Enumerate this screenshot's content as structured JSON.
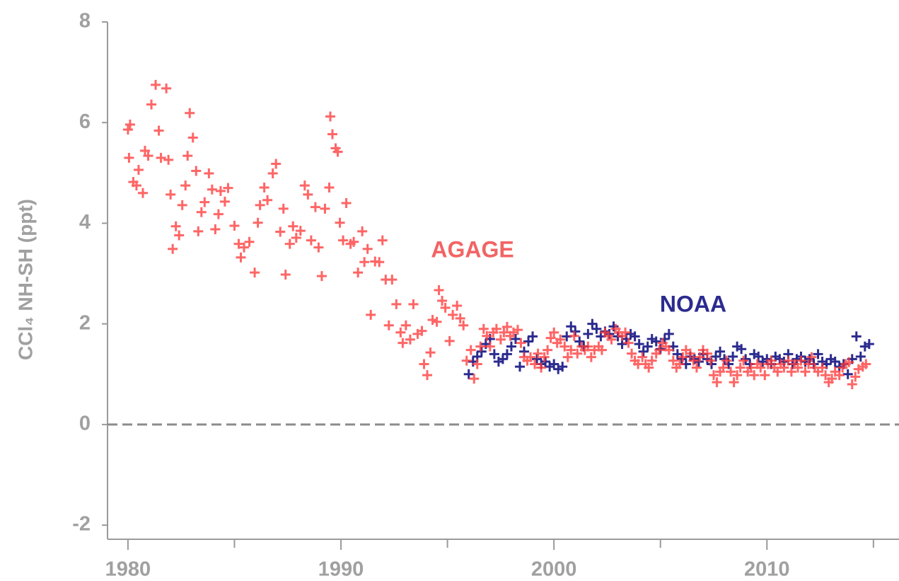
{
  "chart_data": {
    "type": "scatter",
    "ylabel": "CCl₄ NH-SH (ppt)",
    "xlim": [
      1979.04,
      2016.2
    ],
    "ylim": [
      -2.28,
      8
    ],
    "xticks": [
      1980,
      1990,
      2000,
      2010
    ],
    "xminor_ticks": [
      1985,
      1995,
      2005,
      2015
    ],
    "yticks": [
      -2,
      0,
      2,
      4,
      6,
      8
    ],
    "zero_line": true,
    "grid": false,
    "marker": "plus",
    "series": [
      {
        "name": "AGAGE",
        "color": "#ff3b3b",
        "label_color": "#f26464",
        "x": [
          1980.0,
          1980.1,
          1980.05,
          1980.25,
          1980.4,
          1980.5,
          1980.7,
          1980.8,
          1980.95,
          1981.1,
          1981.3,
          1981.45,
          1981.55,
          1981.8,
          1981.9,
          1982.0,
          1982.1,
          1982.25,
          1982.4,
          1982.55,
          1982.7,
          1982.8,
          1982.9,
          1983.05,
          1983.2,
          1983.3,
          1983.45,
          1983.6,
          1983.8,
          1983.95,
          1984.1,
          1984.25,
          1984.35,
          1984.55,
          1984.7,
          1985.0,
          1985.2,
          1985.3,
          1985.45,
          1985.7,
          1985.95,
          1986.1,
          1986.2,
          1986.4,
          1986.55,
          1986.8,
          1986.95,
          1987.15,
          1987.3,
          1987.4,
          1987.6,
          1987.75,
          1987.9,
          1988.1,
          1988.3,
          1988.45,
          1988.6,
          1988.8,
          1988.95,
          1989.1,
          1989.25,
          1989.45,
          1989.5,
          1989.6,
          1989.75,
          1989.85,
          1989.95,
          1990.1,
          1990.25,
          1990.45,
          1990.6,
          1990.8,
          1991.0,
          1991.1,
          1991.25,
          1991.4,
          1991.6,
          1991.8,
          1991.95,
          1992.1,
          1992.25,
          1992.4,
          1992.6,
          1992.8,
          1992.9,
          1993.05,
          1993.25,
          1993.4,
          1993.6,
          1993.8,
          1993.9,
          1994.05,
          1994.2,
          1994.3,
          1994.5,
          1994.6,
          1994.75,
          1994.9,
          1995.1,
          1995.25,
          1995.45,
          1995.6,
          1995.75,
          1995.9,
          1996.1,
          1996.25,
          1996.4,
          1996.55,
          1996.7,
          1996.85,
          1997.0,
          1997.15,
          1997.3,
          1997.5,
          1997.65,
          1997.8,
          1997.95,
          1998.1,
          1998.3,
          1998.45,
          1998.6,
          1998.75,
          1998.9,
          1999.1,
          1999.25,
          1999.4,
          1999.55,
          1999.7,
          1999.85,
          2000.0,
          2000.15,
          2000.3,
          2000.5,
          2000.65,
          2000.8,
          2000.95,
          2001.1,
          2001.3,
          2001.45,
          2001.6,
          2001.75,
          2001.9,
          2002.1,
          2002.25,
          2002.4,
          2002.55,
          2002.7,
          2002.9,
          2003.05,
          2003.2,
          2003.35,
          2003.5,
          2003.65,
          2003.8,
          2003.95,
          2004.15,
          2004.3,
          2004.45,
          2004.6,
          2004.8,
          2004.95,
          2005.1,
          2005.25,
          2005.4,
          2005.6,
          2005.75,
          2005.9,
          2006.05,
          2006.2,
          2006.4,
          2006.55,
          2006.7,
          2006.85,
          2007.0,
          2007.2,
          2007.35,
          2007.5,
          2007.65,
          2007.8,
          2007.95,
          2008.1,
          2008.3,
          2008.45,
          2008.6,
          2008.75,
          2008.9,
          2009.1,
          2009.25,
          2009.4,
          2009.55,
          2009.7,
          2009.9,
          2010.05,
          2010.2,
          2010.35,
          2010.5,
          2010.65,
          2010.8,
          2011.0,
          2011.15,
          2011.3,
          2011.45,
          2011.6,
          2011.8,
          2011.95,
          2012.1,
          2012.25,
          2012.4,
          2012.6,
          2012.75,
          2012.9,
          2013.05,
          2013.2,
          2013.4,
          2013.55,
          2013.7,
          2013.85,
          2014.0,
          2014.15,
          2014.3,
          2014.5,
          2014.65
        ],
        "values": [
          5.86,
          5.96,
          5.3,
          4.82,
          4.75,
          5.06,
          4.6,
          5.44,
          5.34,
          6.36,
          6.75,
          5.84,
          5.3,
          6.68,
          5.26,
          4.57,
          3.49,
          3.94,
          3.76,
          4.36,
          4.75,
          5.34,
          6.19,
          5.7,
          5.04,
          3.84,
          4.22,
          4.42,
          4.99,
          4.67,
          3.88,
          4.18,
          4.64,
          4.43,
          4.7,
          3.95,
          3.59,
          3.32,
          3.52,
          3.63,
          3.02,
          4.01,
          4.36,
          4.71,
          4.46,
          4.99,
          5.18,
          3.83,
          4.29,
          2.98,
          3.59,
          3.94,
          3.71,
          3.85,
          4.75,
          4.57,
          3.66,
          4.32,
          3.52,
          2.95,
          4.29,
          4.71,
          6.12,
          5.77,
          5.49,
          5.42,
          4.01,
          3.66,
          4.4,
          3.59,
          3.63,
          3.02,
          3.84,
          3.23,
          3.49,
          2.18,
          3.24,
          3.23,
          3.66,
          2.88,
          1.97,
          2.88,
          2.39,
          1.83,
          1.62,
          1.97,
          1.69,
          2.39,
          1.8,
          1.86,
          1.2,
          0.98,
          1.43,
          2.08,
          2.04,
          2.67,
          2.46,
          2.32,
          1.66,
          2.18,
          2.36,
          2.11,
          1.97,
          1.27,
          1.48,
          0.91,
          1.2,
          1.55,
          1.9,
          1.76,
          1.55,
          1.83,
          1.9,
          1.69,
          1.83,
          1.94,
          1.76,
          1.83,
          1.88,
          1.62,
          1.34,
          1.27,
          1.34,
          1.2,
          1.41,
          1.13,
          1.34,
          1.48,
          1.72,
          1.83,
          1.62,
          1.69,
          1.55,
          1.34,
          1.48,
          1.76,
          1.41,
          1.55,
          1.48,
          1.55,
          1.34,
          1.48,
          1.55,
          1.48,
          1.83,
          1.76,
          1.69,
          1.9,
          1.83,
          1.76,
          1.83,
          1.62,
          1.41,
          1.27,
          1.2,
          1.34,
          1.2,
          1.13,
          1.27,
          1.41,
          1.48,
          1.62,
          1.55,
          1.48,
          1.27,
          1.13,
          1.2,
          1.34,
          1.48,
          1.41,
          1.27,
          1.13,
          1.34,
          1.48,
          1.41,
          1.27,
          0.98,
          0.84,
          1.05,
          1.13,
          1.27,
          1.05,
          0.84,
          0.98,
          1.13,
          1.27,
          1.05,
          1.13,
          0.98,
          1.2,
          1.13,
          0.98,
          1.2,
          1.27,
          1.13,
          1.05,
          1.2,
          1.13,
          1.27,
          1.05,
          1.2,
          1.13,
          1.27,
          1.05,
          1.2,
          1.34,
          1.13,
          1.05,
          1.13,
          0.98,
          0.84,
          0.91,
          1.05,
          0.98,
          1.13,
          1.2,
          1.24,
          0.8,
          0.95,
          1.1,
          1.15,
          1.2
        ]
      },
      {
        "name": "NOAA",
        "color": "#2b2b8f",
        "label_color": "#2b2b8f",
        "x": [
          1996.0,
          1996.2,
          1996.4,
          1996.6,
          1996.8,
          1997.0,
          1997.2,
          1997.4,
          1997.6,
          1997.8,
          1998.0,
          1998.2,
          1998.4,
          1998.6,
          1998.8,
          1999.0,
          1999.2,
          1999.4,
          1999.6,
          1999.8,
          2000.0,
          2000.2,
          2000.4,
          2000.6,
          2000.8,
          2001.0,
          2001.2,
          2001.4,
          2001.6,
          2001.8,
          2002.0,
          2002.2,
          2002.4,
          2002.6,
          2002.8,
          2003.0,
          2003.2,
          2003.4,
          2003.6,
          2003.8,
          2004.0,
          2004.2,
          2004.4,
          2004.6,
          2004.8,
          2005.0,
          2005.2,
          2005.4,
          2005.6,
          2005.8,
          2006.0,
          2006.2,
          2006.4,
          2006.6,
          2006.8,
          2007.0,
          2007.2,
          2007.4,
          2007.6,
          2007.8,
          2008.0,
          2008.2,
          2008.4,
          2008.6,
          2008.8,
          2009.0,
          2009.2,
          2009.4,
          2009.6,
          2009.8,
          2010.0,
          2010.2,
          2010.4,
          2010.6,
          2010.8,
          2011.0,
          2011.2,
          2011.4,
          2011.6,
          2011.8,
          2012.0,
          2012.2,
          2012.4,
          2012.6,
          2012.8,
          2013.0,
          2013.2,
          2013.4,
          2013.6,
          2013.8,
          2014.0,
          2014.2,
          2014.4,
          2014.6,
          2014.8
        ],
        "values": [
          1.0,
          1.25,
          1.35,
          1.45,
          1.6,
          1.7,
          1.4,
          1.25,
          1.3,
          1.4,
          1.55,
          1.7,
          1.15,
          1.45,
          1.65,
          1.75,
          1.3,
          1.2,
          1.25,
          1.15,
          1.2,
          1.1,
          1.15,
          1.75,
          1.95,
          1.85,
          1.65,
          1.55,
          1.8,
          2.0,
          1.9,
          1.75,
          1.85,
          1.8,
          1.95,
          1.75,
          1.6,
          1.7,
          1.8,
          1.75,
          1.6,
          1.45,
          1.55,
          1.7,
          1.65,
          1.5,
          1.7,
          1.8,
          1.55,
          1.4,
          1.3,
          1.2,
          1.35,
          1.3,
          1.25,
          1.4,
          1.3,
          1.2,
          1.35,
          1.45,
          1.3,
          1.2,
          1.35,
          1.55,
          1.5,
          1.3,
          1.2,
          1.4,
          1.35,
          1.25,
          1.3,
          1.2,
          1.35,
          1.3,
          1.25,
          1.4,
          1.2,
          1.3,
          1.35,
          1.25,
          1.3,
          1.2,
          1.4,
          1.25,
          1.2,
          1.3,
          1.25,
          1.15,
          1.2,
          1.0,
          1.3,
          1.75,
          1.35,
          1.55,
          1.6
        ]
      }
    ]
  }
}
